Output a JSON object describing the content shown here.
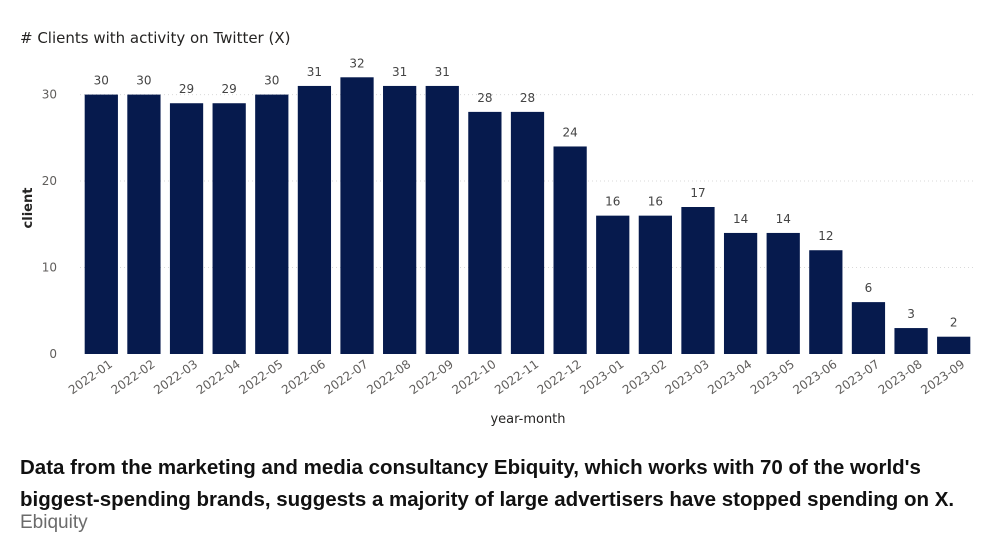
{
  "chart_data": {
    "type": "bar",
    "title": "# Clients with activity on Twitter (X)",
    "xlabel": "year-month",
    "ylabel": "client",
    "ylim": [
      0,
      34
    ],
    "yticks": [
      0,
      10,
      20,
      30
    ],
    "grid": true,
    "bar_color": "#061A4D",
    "categories": [
      "2022-01",
      "2022-02",
      "2022-03",
      "2022-04",
      "2022-05",
      "2022-06",
      "2022-07",
      "2022-08",
      "2022-09",
      "2022-10",
      "2022-11",
      "2022-12",
      "2023-01",
      "2023-02",
      "2023-03",
      "2023-04",
      "2023-05",
      "2023-06",
      "2023-07",
      "2023-08",
      "2023-09"
    ],
    "values": [
      30,
      30,
      29,
      29,
      30,
      31,
      32,
      31,
      31,
      28,
      28,
      24,
      16,
      16,
      17,
      14,
      14,
      12,
      6,
      3,
      2
    ]
  },
  "caption": "Data from the marketing and media consultancy Ebiquity, which works with 70 of the world's biggest-spending brands, suggests a majority of large advertisers have stopped spending on X.",
  "credit": "Ebiquity"
}
